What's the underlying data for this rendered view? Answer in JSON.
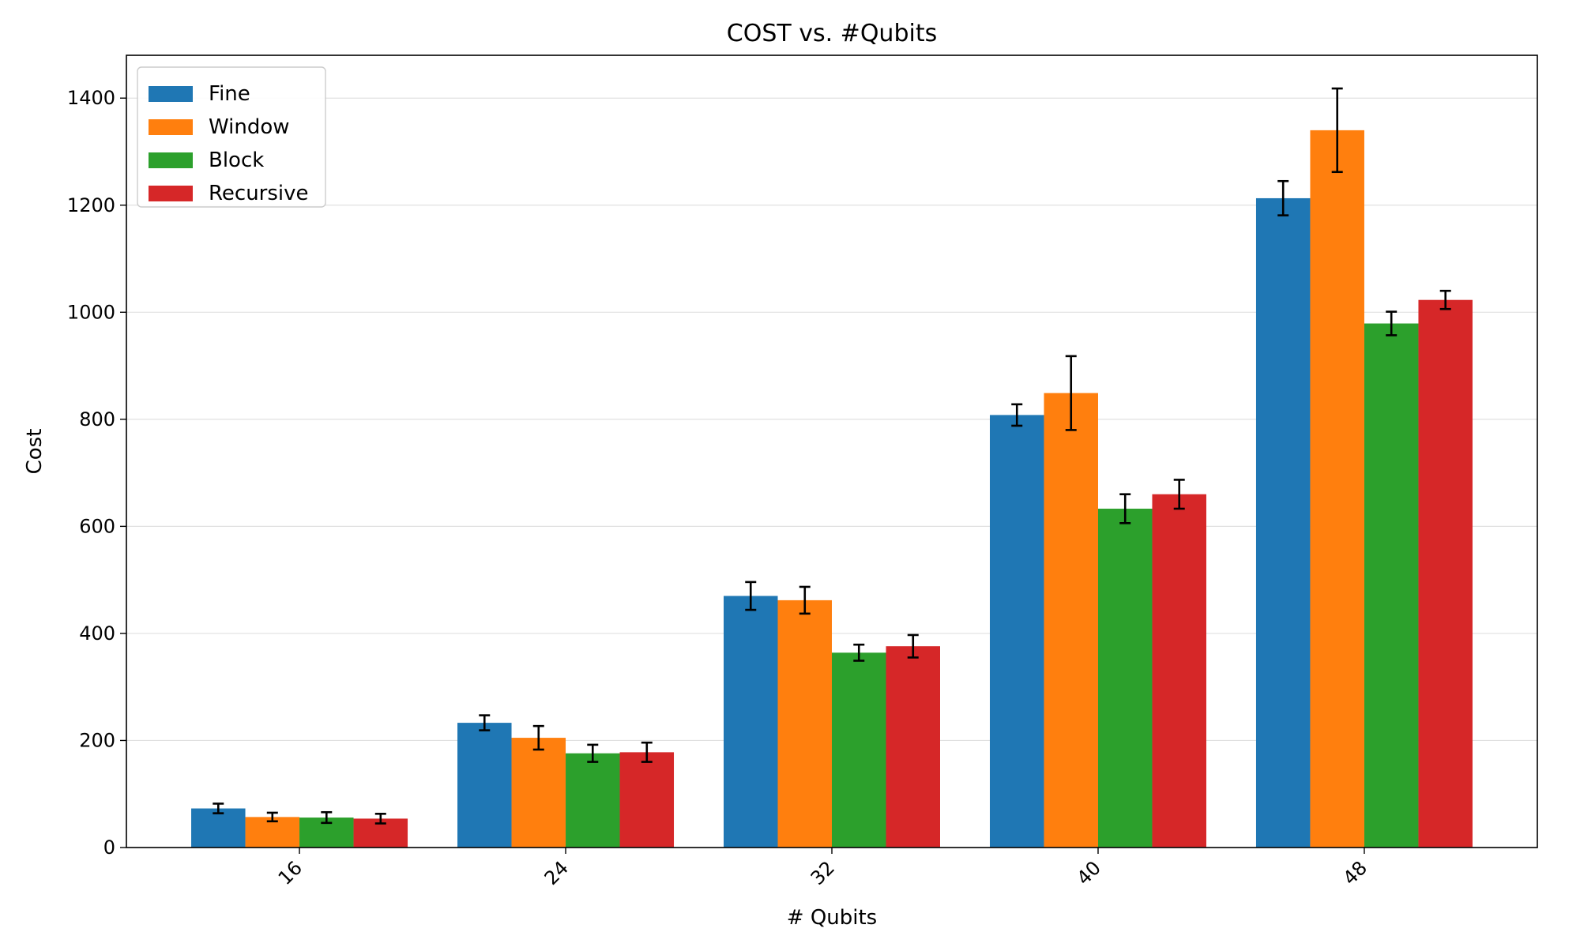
{
  "chart_data": {
    "type": "bar",
    "title": "COST vs. #Qubits",
    "xlabel": "# Qubits",
    "ylabel": "Cost",
    "categories": [
      "16",
      "24",
      "32",
      "40",
      "48"
    ],
    "ylim": [
      0,
      1480
    ],
    "yticks": [
      0,
      200,
      400,
      600,
      800,
      1000,
      1200,
      1400
    ],
    "grid": "horizontal",
    "legend_position": "top-left",
    "xtick_rotation": 45,
    "series": [
      {
        "name": "Fine",
        "color": "#1f77b4",
        "values": [
          73,
          233,
          470,
          808,
          1213
        ],
        "errors": [
          9,
          14,
          26,
          20,
          32
        ]
      },
      {
        "name": "Window",
        "color": "#ff7f0e",
        "values": [
          57,
          205,
          462,
          849,
          1340
        ],
        "errors": [
          8,
          22,
          25,
          69,
          78
        ]
      },
      {
        "name": "Block",
        "color": "#2ca02c",
        "values": [
          56,
          176,
          364,
          633,
          979
        ],
        "errors": [
          10,
          16,
          15,
          27,
          22
        ]
      },
      {
        "name": "Recursive",
        "color": "#d62728",
        "values": [
          54,
          178,
          376,
          660,
          1023
        ],
        "errors": [
          9,
          18,
          21,
          27,
          17
        ]
      }
    ]
  }
}
